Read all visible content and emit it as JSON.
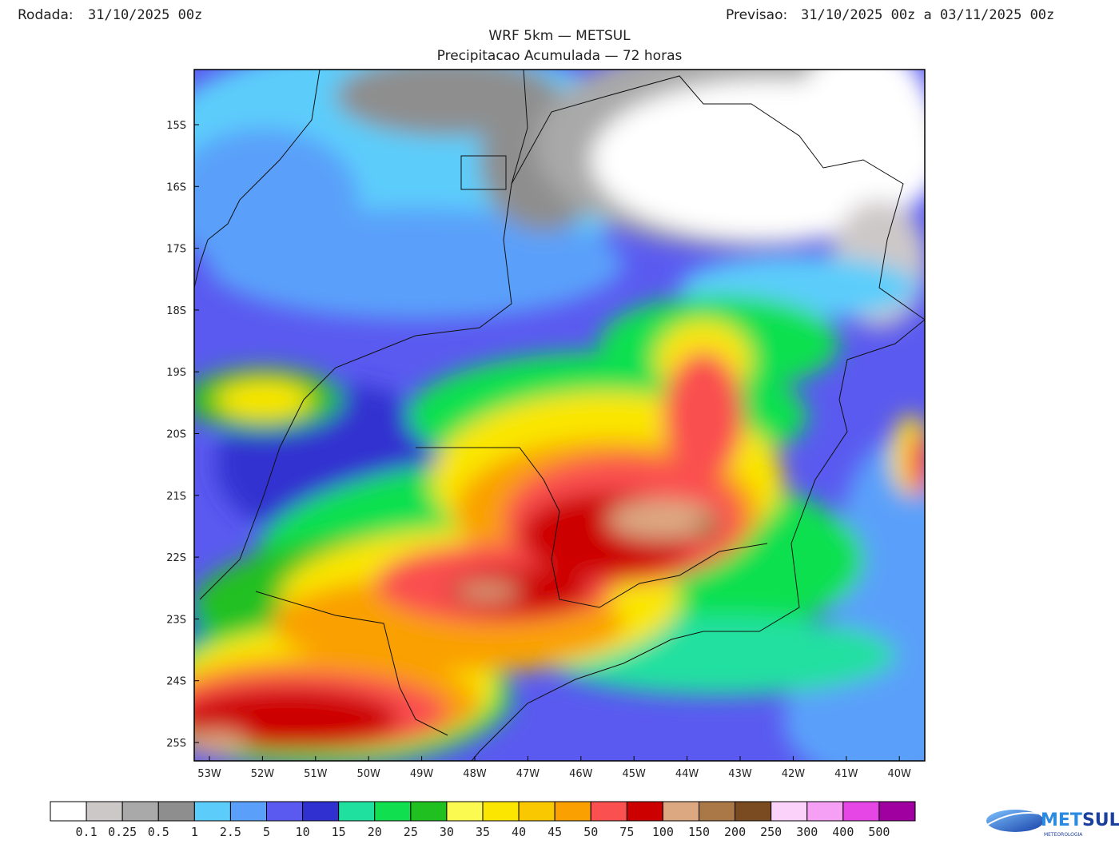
{
  "header": {
    "run_label": "Rodada:",
    "run_value": "31/10/2025 00z",
    "forecast_label": "Previsao:",
    "forecast_value": "31/10/2025 00z a 03/11/2025 00z"
  },
  "title": "WRF 5km — METSUL",
  "subtitle": "Precipitacao Acumulada — 72 horas",
  "map": {
    "lat_labels": [
      "15S",
      "16S",
      "17S",
      "18S",
      "19S",
      "20S",
      "21S",
      "22S",
      "23S",
      "24S",
      "25S"
    ],
    "lon_labels": [
      "53W",
      "52W",
      "51W",
      "50W",
      "49W",
      "48W",
      "47W",
      "46W",
      "45W",
      "44W",
      "43W",
      "42W",
      "41W",
      "40W"
    ]
  },
  "legend": {
    "colors": [
      "#ffffff",
      "#cdc8c8",
      "#a9a9a9",
      "#8e8e8e",
      "#5ccdfb",
      "#5aa0fa",
      "#5a5af0",
      "#3030d0",
      "#20e0a0",
      "#10e050",
      "#20c020",
      "#fafa50",
      "#fae600",
      "#fac800",
      "#faa000",
      "#fa5050",
      "#cd0000",
      "#dca882",
      "#aa7846",
      "#7a4a20",
      "#fad2fa",
      "#f5a0f5",
      "#e646e6",
      "#a000a0"
    ],
    "labels": [
      "0.1",
      "0.25",
      "0.5",
      "1",
      "2.5",
      "5",
      "10",
      "15",
      "20",
      "25",
      "30",
      "35",
      "40",
      "45",
      "50",
      "75",
      "100",
      "150",
      "200",
      "250",
      "300",
      "400",
      "500"
    ]
  },
  "logo": {
    "name_part1": "MET",
    "name_part2": "SUL",
    "tagline": "METEOROLOGIA"
  }
}
